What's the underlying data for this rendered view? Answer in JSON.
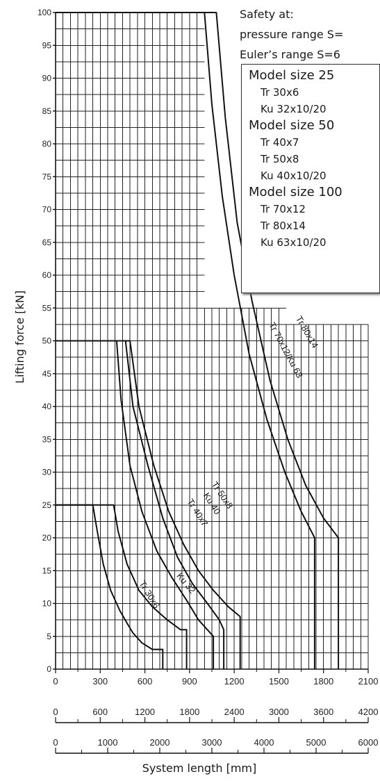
{
  "safety": {
    "line1": "Safety at:",
    "line2": "pressure range S=",
    "line3": "Euler’s range S=6"
  },
  "legend": [
    {
      "group": "Model size 25",
      "items": [
        "Tr 30x6",
        "Ku 32x10/20"
      ]
    },
    {
      "group": "Model size 50",
      "items": [
        "Tr 40x7",
        "Tr 50x8",
        "Ku 40x10/20"
      ]
    },
    {
      "group": "Model size 100",
      "items": [
        "Tr 70x12",
        "Tr 80x14",
        "Ku 63x10/20"
      ]
    }
  ],
  "chart_data": {
    "type": "line",
    "ylabel": "Lifting force [kN]",
    "xlabel": "System length [mm]",
    "ylim": [
      0,
      100
    ],
    "yticks": [
      0,
      5,
      10,
      15,
      20,
      25,
      30,
      35,
      40,
      45,
      50,
      55,
      60,
      65,
      70,
      75,
      80,
      85,
      90,
      95,
      100
    ],
    "grid": true,
    "x_axes": [
      {
        "ticks": [
          0,
          300,
          600,
          900,
          1200,
          1500,
          1800,
          2100
        ],
        "labels": [
          "0",
          "300",
          "600",
          "900",
          "1200",
          "1500",
          "1800",
          "2100"
        ]
      },
      {
        "ticks": [
          0,
          600,
          1200,
          1800,
          2400,
          3000,
          3600,
          4200
        ],
        "labels": [
          "0",
          "600",
          "1200",
          "1800",
          "2400",
          "3000",
          "3600",
          "4200"
        ]
      },
      {
        "ticks": [
          0,
          1000,
          2000,
          3000,
          4000,
          5000,
          6000
        ],
        "labels": [
          "0",
          "1000",
          "2000",
          "3000",
          "4000",
          "5000",
          "6000"
        ]
      }
    ],
    "series": [
      {
        "name": "Tr 30x6",
        "label": "Tr 30x6",
        "x": [
          0,
          250,
          280,
          320,
          370,
          430,
          480,
          520,
          580,
          650,
          720,
          720
        ],
        "y": [
          25,
          25,
          21,
          16,
          12,
          9,
          7,
          5.5,
          4,
          3,
          3,
          0
        ]
      },
      {
        "name": "Ku 32",
        "label": "Ku 32",
        "x": [
          0,
          390,
          420,
          480,
          560,
          650,
          750,
          840,
          880,
          880
        ],
        "y": [
          25,
          25,
          21,
          16,
          12,
          9.5,
          7.5,
          6,
          6,
          0
        ]
      },
      {
        "name": "Tr 40x7",
        "label": "Tr 40x7",
        "x": [
          0,
          410,
          440,
          500,
          580,
          680,
          780,
          880,
          960,
          1060,
          1060
        ],
        "y": [
          50,
          50,
          41,
          31,
          24,
          18,
          14,
          10.5,
          7.5,
          5,
          0
        ]
      },
      {
        "name": "Ku 40",
        "label": "Ku 40",
        "x": [
          0,
          470,
          520,
          620,
          720,
          820,
          920,
          1020,
          1100,
          1130,
          1130
        ],
        "y": [
          50,
          50,
          40,
          31,
          23,
          17,
          13,
          10,
          7.5,
          6,
          0
        ]
      },
      {
        "name": "Tr 50x8",
        "label": "Tr 50x8",
        "x": [
          0,
          500,
          560,
          660,
          760,
          860,
          960,
          1060,
          1160,
          1240,
          1240
        ],
        "y": [
          50,
          50,
          40,
          31,
          24,
          19,
          15,
          12,
          9.5,
          8,
          0
        ]
      },
      {
        "name": "Tr 70x12/Ku 63",
        "label": "Tr 70x12/Ku 63",
        "x": [
          0,
          1000,
          1050,
          1120,
          1200,
          1300,
          1420,
          1540,
          1650,
          1740,
          1740
        ],
        "y": [
          100,
          100,
          86,
          72,
          60,
          48,
          38,
          30,
          24,
          20,
          0
        ]
      },
      {
        "name": "Tr 80x14",
        "label": "Tr 80x14",
        "x": [
          0,
          1080,
          1140,
          1220,
          1320,
          1440,
          1560,
          1680,
          1800,
          1900,
          1900
        ],
        "y": [
          100,
          100,
          84,
          68,
          56,
          44,
          35,
          28,
          23,
          20,
          0
        ]
      }
    ]
  }
}
